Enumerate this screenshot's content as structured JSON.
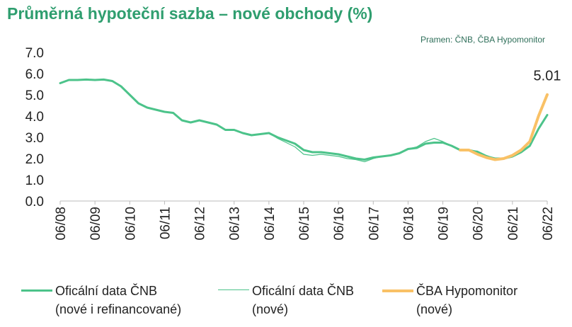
{
  "chart_data": {
    "type": "line",
    "title": "Průměrná hypoteční sazba – nové obchody (%)",
    "subtitle": "Pramen: ČNB, ČBA Hypomonitor",
    "categories": [
      "06/08",
      null,
      null,
      null,
      "06/09",
      null,
      null,
      null,
      "06/10",
      null,
      null,
      null,
      "06/11",
      null,
      null,
      null,
      "06/12",
      null,
      null,
      null,
      "06/13",
      null,
      null,
      null,
      "06/14",
      null,
      null,
      null,
      "06/15",
      null,
      null,
      null,
      "06/16",
      null,
      null,
      null,
      "06/17",
      null,
      null,
      null,
      "06/18",
      null,
      null,
      null,
      "06/19",
      null,
      null,
      null,
      "06/20",
      null,
      null,
      null,
      "06/21",
      null,
      null,
      null,
      "06/22"
    ],
    "ylim": [
      0,
      7
    ],
    "yticks": [
      {
        "value": 0,
        "label": "0.0"
      },
      {
        "value": 1,
        "label": "1.0"
      },
      {
        "value": 2,
        "label": "2.0"
      },
      {
        "value": 3,
        "label": "3.0"
      },
      {
        "value": 4,
        "label": "4.0"
      },
      {
        "value": 5,
        "label": "5.0"
      },
      {
        "value": 6,
        "label": "6.0"
      },
      {
        "value": 7,
        "label": "7.0"
      }
    ],
    "series": [
      {
        "name": "Oficální data ČNB\n(nové i refinancované)",
        "color": "#4cc38a",
        "width": 3,
        "values": [
          5.55,
          5.7,
          5.7,
          5.72,
          5.7,
          5.72,
          5.65,
          5.4,
          5.0,
          4.6,
          4.4,
          4.3,
          4.2,
          4.15,
          3.8,
          3.7,
          3.8,
          3.7,
          3.6,
          3.35,
          3.35,
          3.2,
          3.1,
          3.15,
          3.2,
          3.0,
          2.85,
          2.7,
          2.4,
          2.3,
          2.3,
          2.25,
          2.2,
          2.1,
          2.0,
          1.95,
          2.05,
          2.1,
          2.15,
          2.25,
          2.45,
          2.5,
          2.7,
          2.75,
          2.75,
          2.6,
          2.4,
          2.4,
          2.3,
          2.1,
          2.0,
          2.0,
          2.1,
          2.3,
          2.6,
          3.4,
          4.05
        ]
      },
      {
        "name": "Oficální data ČNB\n(nové)",
        "color": "#4cc38a",
        "width": 1.2,
        "values": [
          5.55,
          5.7,
          5.7,
          5.72,
          5.7,
          5.72,
          5.65,
          5.4,
          5.0,
          4.6,
          4.4,
          4.3,
          4.2,
          4.15,
          3.8,
          3.7,
          3.8,
          3.7,
          3.6,
          3.35,
          3.35,
          3.2,
          3.1,
          3.15,
          3.2,
          2.95,
          2.75,
          2.55,
          2.2,
          2.15,
          2.2,
          2.15,
          2.1,
          2.0,
          1.95,
          1.85,
          2.0,
          2.1,
          2.15,
          2.25,
          2.45,
          2.55,
          2.8,
          2.95,
          2.8,
          2.6,
          2.4,
          2.4,
          2.35,
          2.15,
          2.0,
          2.0,
          2.1,
          2.3,
          2.6,
          3.4,
          4.05
        ]
      },
      {
        "name": "ČBA Hypomonitor\n(nové)",
        "color": "#f9c166",
        "width": 4,
        "values": [
          null,
          null,
          null,
          null,
          null,
          null,
          null,
          null,
          null,
          null,
          null,
          null,
          null,
          null,
          null,
          null,
          null,
          null,
          null,
          null,
          null,
          null,
          null,
          null,
          null,
          null,
          null,
          null,
          null,
          null,
          null,
          null,
          null,
          null,
          null,
          null,
          null,
          null,
          null,
          null,
          null,
          null,
          null,
          null,
          null,
          null,
          2.4,
          2.4,
          2.2,
          2.05,
          1.95,
          2.0,
          2.15,
          2.4,
          2.8,
          4.0,
          5.01
        ]
      }
    ]
  }
}
